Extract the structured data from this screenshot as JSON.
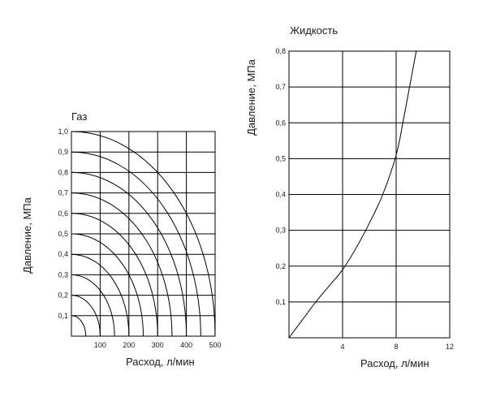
{
  "chart_data": [
    {
      "type": "line",
      "title": "Газ",
      "xlabel": "Расход, л/мин",
      "ylabel": "Давление, МПа",
      "xlim": [
        0,
        500
      ],
      "ylim": [
        0,
        1.0
      ],
      "x_ticks": [
        "100",
        "200",
        "300",
        "400",
        "500"
      ],
      "y_ticks": [
        "0,1",
        "0,2",
        "0,3",
        "0,4",
        "0,5",
        "0,6",
        "0,7",
        "0,8",
        "0,9",
        "1,0"
      ],
      "grid": true,
      "series": [
        {
          "x_max": 50,
          "y_max": 0.1
        },
        {
          "x_max": 100,
          "y_max": 0.2
        },
        {
          "x_max": 150,
          "y_max": 0.3
        },
        {
          "x_max": 200,
          "y_max": 0.4
        },
        {
          "x_max": 250,
          "y_max": 0.5
        },
        {
          "x_max": 300,
          "y_max": 0.6
        },
        {
          "x_max": 350,
          "y_max": 0.7
        },
        {
          "x_max": 400,
          "y_max": 0.8
        },
        {
          "x_max": 450,
          "y_max": 0.9
        },
        {
          "x_max": 500,
          "y_max": 1.0
        }
      ]
    },
    {
      "type": "line",
      "title": "Жидкость",
      "xlabel": "Расход, л/мин",
      "ylabel": "Давление, МПа",
      "xlim": [
        0,
        12
      ],
      "ylim": [
        0,
        0.8
      ],
      "x_ticks": [
        "4",
        "8",
        "12"
      ],
      "y_ticks": [
        "0,1",
        "0,2",
        "0,3",
        "0,4",
        "0,5",
        "0,6",
        "0,7",
        "0,8"
      ],
      "grid": true,
      "series": [
        {
          "x": [
            0,
            1,
            2,
            3,
            4,
            5,
            6,
            7,
            8,
            8.5,
            9,
            9.5
          ],
          "y": [
            0,
            0.05,
            0.1,
            0.145,
            0.19,
            0.25,
            0.32,
            0.4,
            0.51,
            0.6,
            0.7,
            0.8
          ]
        }
      ]
    }
  ]
}
